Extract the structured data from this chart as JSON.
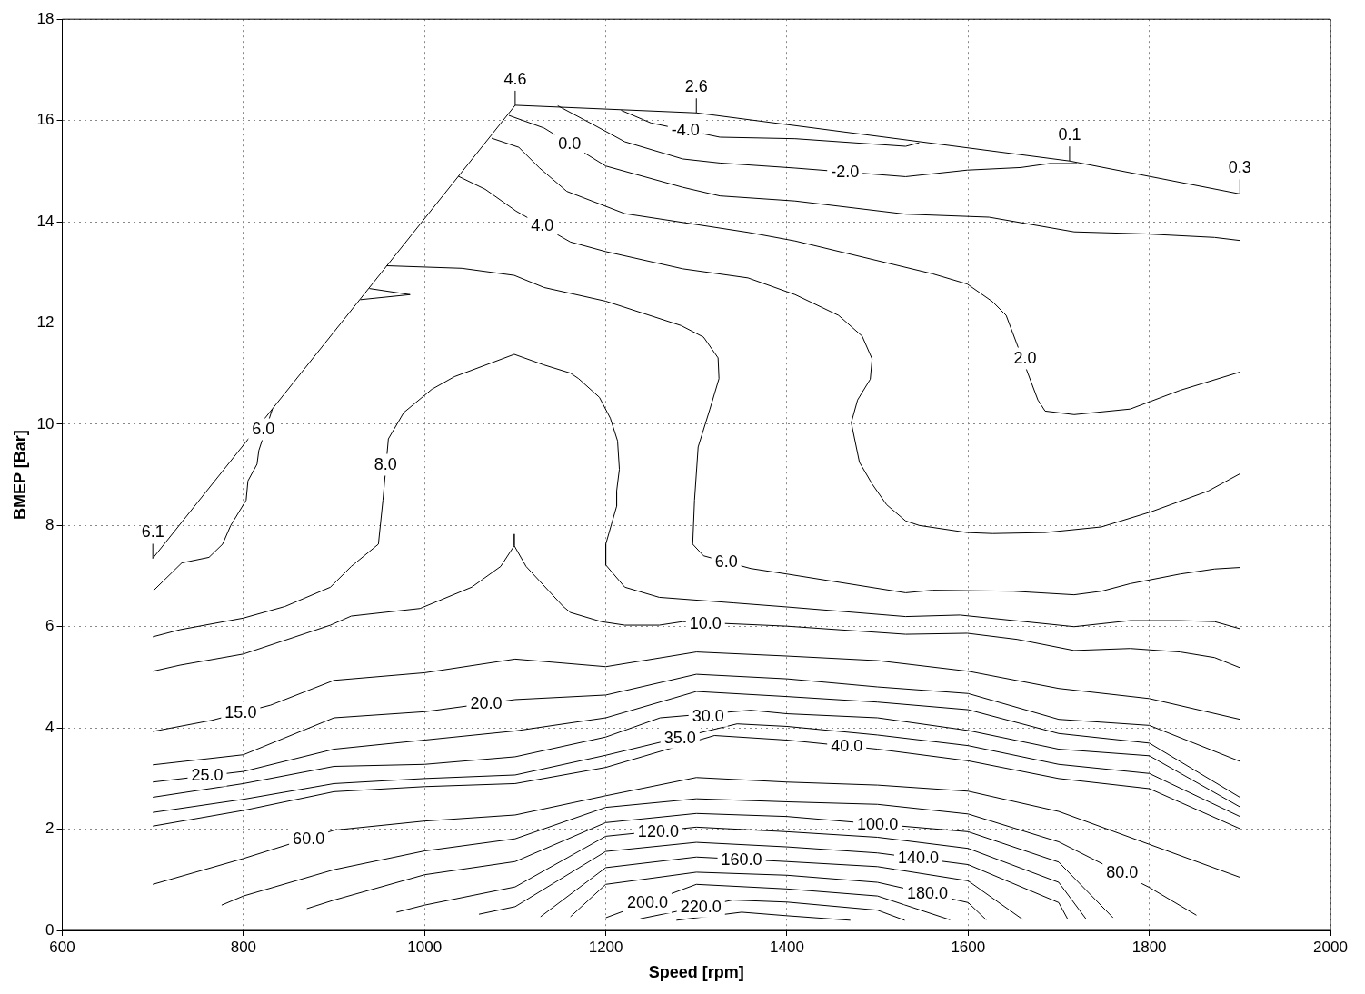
{
  "chart_data": {
    "type": "line",
    "xlabel": "Speed [rpm]",
    "ylabel": "BMEP [Bar]",
    "xlim": [
      600,
      2000
    ],
    "xticks": [
      600,
      800,
      1000,
      1200,
      1400,
      1600,
      1800,
      2000
    ],
    "ylim": [
      0,
      18
    ],
    "yticks": [
      0,
      2,
      4,
      6,
      8,
      10,
      12,
      14,
      16,
      18
    ],
    "grid": true,
    "legend": false,
    "marker": "none",
    "line_style": "solid",
    "series": [
      {
        "color": "#000000",
        "x": [
          700,
          1100,
          1300,
          1712,
          1900
        ],
        "values": [
          7.35,
          16.3,
          16.15,
          15.2,
          14.55
        ]
      },
      {
        "color": "#000000",
        "x": [
          1217,
          1250,
          1326,
          1409,
          1531,
          1546
        ],
        "values": [
          16.2,
          15.95,
          15.67,
          15.64,
          15.49,
          15.56
        ]
      },
      {
        "color": "#000000",
        "x": [
          1147,
          1186,
          1221,
          1285,
          1326,
          1409,
          1531,
          1599,
          1658,
          1690,
          1720
        ],
        "values": [
          16.29,
          15.92,
          15.58,
          15.24,
          15.16,
          15.06,
          14.89,
          15.02,
          15.07,
          15.15,
          15.15
        ]
      },
      {
        "color": "#000000",
        "x": [
          1093,
          1132,
          1200,
          1285,
          1326,
          1409,
          1531,
          1623,
          1717,
          1795,
          1872,
          1900
        ],
        "values": [
          16.1,
          15.85,
          15.1,
          14.68,
          14.51,
          14.41,
          14.15,
          14.09,
          13.8,
          13.76,
          13.69,
          13.63
        ]
      },
      {
        "color": "#000000",
        "x": [
          1074,
          1104,
          1127,
          1157,
          1221,
          1357,
          1409,
          1561,
          1599,
          1627,
          1642,
          1677,
          1685,
          1717,
          1779,
          1834,
          1900
        ],
        "values": [
          15.65,
          15.47,
          15.06,
          14.6,
          14.16,
          13.79,
          13.62,
          12.97,
          12.77,
          12.42,
          12.15,
          10.48,
          10.26,
          10.19,
          10.3,
          10.67,
          11.03
        ]
      },
      {
        "color": "#000000",
        "x": [
          1037,
          1067,
          1101,
          1161,
          1200,
          1285,
          1357,
          1409,
          1457,
          1483,
          1494,
          1492,
          1478,
          1471,
          1480,
          1494,
          1510,
          1531,
          1546,
          1599,
          1627,
          1685,
          1747,
          1802,
          1865,
          1900
        ],
        "values": [
          14.9,
          14.64,
          14.21,
          13.6,
          13.41,
          13.07,
          12.89,
          12.56,
          12.15,
          11.74,
          11.29,
          10.89,
          10.48,
          10.03,
          9.25,
          8.82,
          8.41,
          8.09,
          8.0,
          7.86,
          7.84,
          7.86,
          7.97,
          8.27,
          8.68,
          9.02
        ]
      },
      {
        "color": "#000000",
        "x": [
          939,
          984,
          929
        ],
        "values": [
          12.68,
          12.56,
          12.46
        ]
      },
      {
        "color": "#000000",
        "x": [
          832,
          817,
          815,
          805,
          803,
          786,
          777,
          762,
          732,
          700
        ],
        "values": [
          10.3,
          9.48,
          9.21,
          8.88,
          8.5,
          8.0,
          7.63,
          7.37,
          7.26,
          6.7
        ]
      },
      {
        "color": "#000000",
        "x": [
          958,
          1041,
          1099,
          1132,
          1200,
          1283,
          1308,
          1324,
          1325,
          1315,
          1302,
          1298,
          1296,
          1308,
          1360,
          1400,
          1531,
          1561,
          1650,
          1717,
          1747,
          1779,
          1834,
          1872,
          1900
        ],
        "values": [
          13.13,
          13.08,
          12.94,
          12.7,
          12.43,
          11.95,
          11.72,
          11.31,
          10.9,
          10.3,
          9.55,
          8.5,
          7.63,
          7.4,
          7.15,
          7.04,
          6.67,
          6.72,
          6.7,
          6.63,
          6.7,
          6.85,
          7.04,
          7.14,
          7.17
        ]
      },
      {
        "color": "#000000",
        "x": [
          700,
          730,
          800,
          846,
          896,
          919,
          949,
          954,
          960,
          977,
          1008,
          1033,
          1099,
          1132,
          1161,
          1170,
          1193,
          1205,
          1213,
          1215,
          1212,
          1212,
          1200,
          1200,
          1221,
          1259,
          1341,
          1400,
          1531,
          1591,
          1717,
          1779,
          1834,
          1872,
          1900
        ],
        "values": [
          5.8,
          5.94,
          6.17,
          6.4,
          6.78,
          7.19,
          7.63,
          8.5,
          9.71,
          10.23,
          10.69,
          10.94,
          11.38,
          11.17,
          11.01,
          10.9,
          10.53,
          10.12,
          9.67,
          9.11,
          8.68,
          8.38,
          7.63,
          7.22,
          6.78,
          6.58,
          6.47,
          6.39,
          6.2,
          6.23,
          6.0,
          6.12,
          6.12,
          6.1,
          5.96
        ]
      },
      {
        "color": "#000000",
        "x": [
          700,
          730,
          800,
          896,
          919,
          995,
          1052,
          1084,
          1099,
          1099,
          1099,
          1112,
          1153,
          1161,
          1195,
          1221,
          1259,
          1285,
          1400,
          1531,
          1599,
          1654,
          1717,
          1779,
          1834,
          1872,
          1900
        ],
        "values": [
          5.12,
          5.24,
          5.46,
          6.03,
          6.21,
          6.36,
          6.78,
          7.19,
          7.6,
          7.83,
          7.6,
          7.19,
          6.4,
          6.28,
          6.1,
          6.03,
          6.03,
          6.1,
          6.01,
          5.85,
          5.87,
          5.75,
          5.53,
          5.57,
          5.5,
          5.39,
          5.19
        ]
      },
      {
        "color": "#000000",
        "x": [
          700,
          765,
          830,
          900,
          1000,
          1100,
          1200,
          1300,
          1400,
          1500,
          1600,
          1700,
          1800,
          1900
        ],
        "values": [
          3.93,
          4.15,
          4.45,
          4.94,
          5.09,
          5.36,
          5.21,
          5.5,
          5.42,
          5.33,
          5.12,
          4.78,
          4.58,
          4.17
        ]
      },
      {
        "color": "#000000",
        "x": [
          700,
          800,
          900,
          1000,
          1100,
          1200,
          1300,
          1400,
          1500,
          1600,
          1700,
          1800,
          1900
        ],
        "values": [
          3.27,
          3.47,
          4.2,
          4.32,
          4.56,
          4.65,
          5.06,
          4.97,
          4.81,
          4.68,
          4.17,
          4.05,
          3.34
        ]
      },
      {
        "color": "#000000",
        "x": [
          700,
          800,
          900,
          1000,
          1100,
          1200,
          1300,
          1400,
          1500,
          1600,
          1700,
          1800,
          1900
        ],
        "values": [
          2.93,
          3.14,
          3.58,
          3.76,
          3.94,
          4.2,
          4.72,
          4.62,
          4.51,
          4.36,
          3.89,
          3.7,
          2.63
        ]
      },
      {
        "color": "#000000",
        "x": [
          700,
          800,
          900,
          1000,
          1100,
          1200,
          1260,
          1360,
          1400,
          1500,
          1600,
          1700,
          1800,
          1900
        ],
        "values": [
          2.63,
          2.9,
          3.24,
          3.28,
          3.43,
          3.82,
          4.2,
          4.35,
          4.28,
          4.2,
          3.95,
          3.58,
          3.45,
          2.44
        ]
      },
      {
        "color": "#000000",
        "x": [
          700,
          800,
          900,
          1000,
          1100,
          1200,
          1345,
          1400,
          1500,
          1600,
          1700,
          1800,
          1900
        ],
        "values": [
          2.33,
          2.59,
          2.9,
          3.0,
          3.07,
          3.46,
          4.08,
          4.03,
          3.86,
          3.65,
          3.28,
          3.1,
          2.25
        ]
      },
      {
        "color": "#000000",
        "x": [
          700,
          800,
          900,
          1000,
          1100,
          1200,
          1320,
          1400,
          1500,
          1600,
          1700,
          1800,
          1900
        ],
        "values": [
          2.06,
          2.37,
          2.74,
          2.84,
          2.9,
          3.22,
          3.85,
          3.76,
          3.58,
          3.35,
          3.0,
          2.8,
          2.01
        ]
      },
      {
        "color": "#000000",
        "x": [
          700,
          800,
          900,
          1000,
          1100,
          1200,
          1300,
          1400,
          1500,
          1600,
          1700,
          1800,
          1900
        ],
        "values": [
          0.91,
          1.42,
          1.98,
          2.16,
          2.28,
          2.66,
          3.02,
          2.93,
          2.87,
          2.75,
          2.35,
          1.7,
          1.05
        ]
      },
      {
        "color": "#000000",
        "x": [
          776,
          800,
          900,
          1000,
          1100,
          1200,
          1300,
          1400,
          1500,
          1600,
          1700,
          1800,
          1852
        ],
        "values": [
          0.5,
          0.68,
          1.2,
          1.57,
          1.81,
          2.43,
          2.6,
          2.54,
          2.49,
          2.3,
          1.75,
          0.85,
          0.3
        ]
      },
      {
        "color": "#000000",
        "x": [
          870,
          900,
          1000,
          1100,
          1200,
          1300,
          1400,
          1600,
          1700,
          1760
        ],
        "values": [
          0.43,
          0.6,
          1.1,
          1.36,
          2.13,
          2.31,
          2.25,
          1.95,
          1.35,
          0.25
        ]
      },
      {
        "color": "#000000",
        "x": [
          969,
          1000,
          1100,
          1200,
          1300,
          1400,
          1500,
          1600,
          1700,
          1730
        ],
        "values": [
          0.36,
          0.5,
          0.86,
          1.86,
          2.04,
          1.95,
          1.84,
          1.62,
          0.95,
          0.23
        ]
      },
      {
        "color": "#000000",
        "x": [
          1060,
          1100,
          1200,
          1300,
          1400,
          1500,
          1600,
          1700,
          1710
        ],
        "values": [
          0.32,
          0.47,
          1.56,
          1.74,
          1.65,
          1.53,
          1.3,
          0.55,
          0.22
        ]
      },
      {
        "color": "#000000",
        "x": [
          1128,
          1200,
          1300,
          1400,
          1500,
          1600,
          1660
        ],
        "values": [
          0.27,
          1.24,
          1.45,
          1.36,
          1.26,
          0.98,
          0.22
        ]
      },
      {
        "color": "#000000",
        "x": [
          1161,
          1200,
          1300,
          1400,
          1500,
          1600,
          1620
        ],
        "values": [
          0.27,
          0.91,
          1.15,
          1.09,
          0.95,
          0.55,
          0.21
        ]
      },
      {
        "color": "#000000",
        "x": [
          1200,
          1300,
          1400,
          1500,
          1580
        ],
        "values": [
          0.25,
          0.91,
          0.82,
          0.68,
          0.21
        ]
      },
      {
        "color": "#000000",
        "x": [
          1238,
          1340,
          1400,
          1500,
          1530
        ],
        "values": [
          0.23,
          0.6,
          0.56,
          0.4,
          0.2
        ]
      },
      {
        "color": "#000000",
        "x": [
          1278,
          1350,
          1400,
          1470
        ],
        "values": [
          0.2,
          0.36,
          0.29,
          0.2
        ]
      }
    ],
    "annotations": [
      {
        "text": "6.1",
        "x": 700,
        "y": 7.35
      },
      {
        "text": "4.6",
        "x": 1100,
        "y": 16.3
      },
      {
        "text": "2.6",
        "x": 1300,
        "y": 16.15
      },
      {
        "text": "0.1",
        "x": 1712,
        "y": 15.2
      },
      {
        "text": "0.3",
        "x": 1900,
        "y": 14.55
      },
      {
        "text": "-4.0",
        "x": 1288,
        "y": 15.82
      },
      {
        "text": "-2.0",
        "x": 1464,
        "y": 14.98
      },
      {
        "text": "0.0",
        "x": 1160,
        "y": 15.54
      },
      {
        "text": "2.0",
        "x": 1663,
        "y": 11.3
      },
      {
        "text": "4.0",
        "x": 1130,
        "y": 13.92
      },
      {
        "text": "6.0",
        "x": 822,
        "y": 9.9
      },
      {
        "text": "6.0",
        "x": 1333,
        "y": 7.28
      },
      {
        "text": "8.0",
        "x": 957,
        "y": 9.2
      },
      {
        "text": "10.0",
        "x": 1310,
        "y": 6.07
      },
      {
        "text": "15.0",
        "x": 797,
        "y": 4.3
      },
      {
        "text": "20.0",
        "x": 1068,
        "y": 4.48
      },
      {
        "text": "25.0",
        "x": 760,
        "y": 3.06
      },
      {
        "text": "30.0",
        "x": 1313,
        "y": 4.24
      },
      {
        "text": "35.0",
        "x": 1282,
        "y": 3.81
      },
      {
        "text": "40.0",
        "x": 1466,
        "y": 3.64
      },
      {
        "text": "60.0",
        "x": 872,
        "y": 1.82
      },
      {
        "text": "80.0",
        "x": 1770,
        "y": 1.14
      },
      {
        "text": "100.0",
        "x": 1500,
        "y": 2.1
      },
      {
        "text": "120.0",
        "x": 1258,
        "y": 1.96
      },
      {
        "text": "140.0",
        "x": 1545,
        "y": 1.43
      },
      {
        "text": "160.0",
        "x": 1350,
        "y": 1.4
      },
      {
        "text": "180.0",
        "x": 1555,
        "y": 0.73
      },
      {
        "text": "200.0",
        "x": 1246,
        "y": 0.55
      },
      {
        "text": "220.0",
        "x": 1305,
        "y": 0.47
      }
    ]
  }
}
